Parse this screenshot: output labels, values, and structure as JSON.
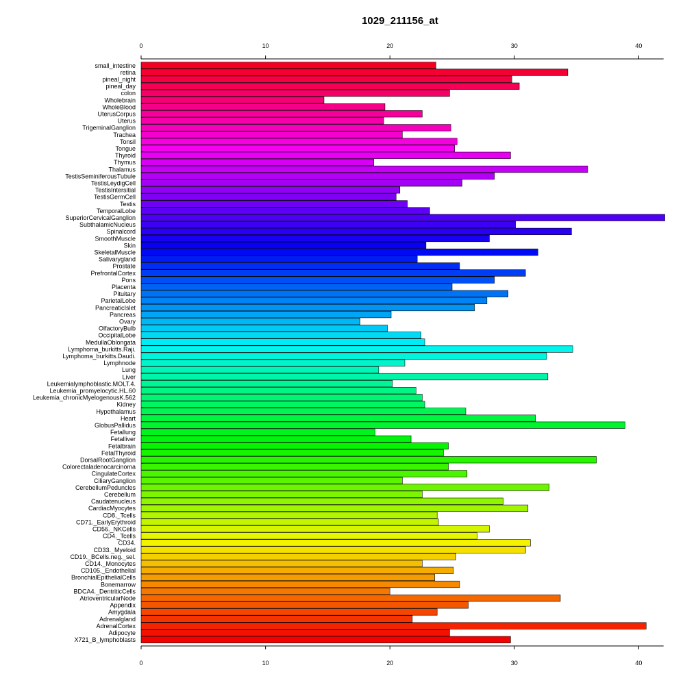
{
  "chart_data": {
    "type": "bar",
    "orientation": "horizontal",
    "title": "1029_211156_at",
    "xlabel": "",
    "ylabel": "",
    "xlim": [
      0,
      42
    ],
    "ticks": [
      0,
      10,
      20,
      30,
      40
    ],
    "tick_labels": [
      "0",
      "10",
      "20",
      "30",
      "40"
    ],
    "axis_position": "top and bottom",
    "grid": false,
    "legend": "none",
    "color_scheme": "rainbow gradient from red (top) through violet, blue, cyan, green, yellow, orange to red (bottom)",
    "categories": [
      "small_intestine",
      "retina",
      "pineal_night",
      "pineal_day",
      "colon",
      "Wholebrain",
      "WholeBlood",
      "UterusCorpus",
      "Uterus",
      "TrigeminalGanglion",
      "Trachea",
      "Tonsil",
      "Tongue",
      "Thyroid",
      "Thymus",
      "Thalamus",
      "TestisSeminiferousTubule",
      "TestisLeydigCell",
      "TestisIntersitial",
      "TestisGermCell",
      "Testis",
      "TemporalLobe",
      "SuperiorCervicalGanglion",
      "SubthalamicNucleus",
      "Spinalcord",
      "SmoothMuscle",
      "Skin",
      "SkeletalMuscle",
      "Salivarygland",
      "Prostate",
      "PrefrontalCortex",
      "Pons",
      "Placenta",
      "Pituitary",
      "ParietalLobe",
      "PancreaticIslet",
      "Pancreas",
      "Ovary",
      "OlfactoryBulb",
      "OccipitalLobe",
      "MedullaOblongata",
      "Lymphoma_burkitts.Raji.",
      "Lymphoma_burkitts.Daudi.",
      "Lymphnode",
      "Lung",
      "Liver",
      "Leukemialymphoblastic.MOLT.4.",
      "Leukemia_promyelocytic.HL.60",
      "Leukemia_chronicMyelogenousK.562",
      "Kidney",
      "Hypothalamus",
      "Heart",
      "GlobusPallidus",
      "Fetallung",
      "Fetalliver",
      "Fetalbrain",
      "FetalThyroid",
      "DorsalRootGanglion",
      "Colorectaladenocarcinoma",
      "CingulateCortex",
      "CiliaryGanglion",
      "CerebellumPeduncles",
      "Cerebellum",
      "Caudatenucleus",
      "CardiacMyocytes",
      "CD8._Tcells",
      "CD71._EarlyErythroid",
      "CD56._NKCells",
      "CD4._Tcells",
      "CD34.",
      "CD33._Myeloid",
      "CD19._BCells.neg._sel.",
      "CD14._Monocytes",
      "CD105._Endothelial",
      "BronchialEpithelialCells",
      "Bonemarrow",
      "BDCA4._DentriticCells",
      "AtrioventricularNode",
      "Appendix",
      "Amygdala",
      "Adrenalgland",
      "AdrenalCortex",
      "Adipocyte",
      "X721_B_lymphoblasts"
    ],
    "values": [
      23.7,
      34.3,
      29.8,
      30.4,
      24.8,
      14.7,
      19.6,
      22.6,
      19.5,
      24.9,
      21.0,
      25.4,
      25.2,
      29.7,
      18.7,
      35.9,
      28.4,
      25.8,
      20.8,
      20.5,
      21.4,
      23.2,
      42.1,
      30.1,
      34.6,
      28.0,
      22.9,
      31.9,
      22.2,
      25.6,
      30.9,
      28.4,
      25.0,
      29.5,
      27.8,
      26.8,
      20.1,
      17.6,
      19.8,
      22.5,
      22.8,
      34.7,
      32.6,
      21.2,
      19.1,
      32.7,
      20.2,
      22.1,
      22.6,
      22.8,
      26.1,
      31.7,
      38.9,
      18.8,
      21.7,
      24.7,
      24.3,
      36.6,
      24.7,
      26.2,
      21.0,
      32.8,
      22.6,
      29.1,
      31.1,
      23.8,
      23.9,
      28.0,
      27.0,
      31.3,
      30.9,
      25.3,
      22.6,
      25.1,
      23.6,
      25.6,
      20.0,
      33.7,
      26.3,
      23.8,
      21.8,
      40.6,
      24.8,
      29.7
    ]
  }
}
